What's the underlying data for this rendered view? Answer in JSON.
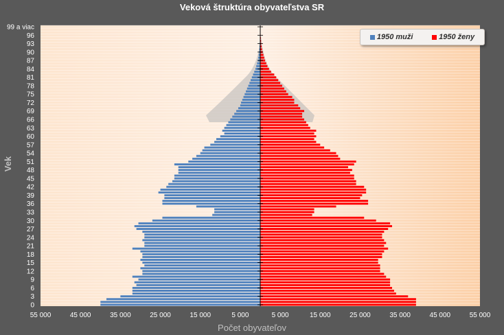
{
  "chart_data": {
    "type": "bar",
    "orientation": "horizontal-pyramid",
    "title": "Veková štruktúra obyvateľstva SR",
    "xlabel": "Počet obyvateľov",
    "ylabel": "Vek",
    "xlim": [
      -55000,
      55000
    ],
    "x_ticks": [
      -55000,
      -45000,
      -35000,
      -25000,
      -15000,
      -5000,
      5000,
      15000,
      25000,
      35000,
      45000,
      55000
    ],
    "x_tick_labels": [
      "55 000",
      "45 000",
      "35 000",
      "25 000",
      "15 000",
      "5 000",
      "5 000",
      "15 000",
      "25 000",
      "35 000",
      "45 000",
      "55 000"
    ],
    "y_tick_labels": [
      "0",
      "3",
      "6",
      "9",
      "12",
      "15",
      "18",
      "21",
      "24",
      "27",
      "30",
      "33",
      "36",
      "39",
      "42",
      "45",
      "48",
      "51",
      "54",
      "57",
      "60",
      "63",
      "66",
      "69",
      "72",
      "75",
      "78",
      "81",
      "84",
      "87",
      "90",
      "93",
      "96",
      "99 a viac"
    ],
    "categories": [
      "0",
      "1",
      "2",
      "3",
      "4",
      "5",
      "6",
      "7",
      "8",
      "9",
      "10",
      "11",
      "12",
      "13",
      "14",
      "15",
      "16",
      "17",
      "18",
      "19",
      "20",
      "21",
      "22",
      "23",
      "24",
      "25",
      "26",
      "27",
      "28",
      "29",
      "30",
      "31",
      "32",
      "33",
      "34",
      "35",
      "36",
      "37",
      "38",
      "39",
      "40",
      "41",
      "42",
      "43",
      "44",
      "45",
      "46",
      "47",
      "48",
      "49",
      "50",
      "51",
      "52",
      "53",
      "54",
      "55",
      "56",
      "57",
      "58",
      "59",
      "60",
      "61",
      "62",
      "63",
      "64",
      "65",
      "66",
      "67",
      "68",
      "69",
      "70",
      "71",
      "72",
      "73",
      "74",
      "75",
      "76",
      "77",
      "78",
      "79",
      "80",
      "81",
      "82",
      "83",
      "84",
      "85",
      "86",
      "87",
      "88",
      "89",
      "90",
      "91",
      "92",
      "93",
      "94",
      "95",
      "96",
      "97",
      "98",
      "99 a viac"
    ],
    "grid": true,
    "legend_position": "top-right",
    "series": [
      {
        "name": "1950 muži",
        "color": "#4f81bd",
        "values": [
          40000,
          40000,
          38500,
          35000,
          32000,
          32000,
          32000,
          31000,
          31500,
          30500,
          32000,
          29500,
          29500,
          30000,
          29000,
          29500,
          30000,
          29500,
          29500,
          30000,
          32000,
          29000,
          29000,
          29500,
          29000,
          29000,
          29500,
          31000,
          31500,
          30500,
          27000,
          24500,
          12000,
          11500,
          11500,
          16000,
          24500,
          24500,
          24000,
          24000,
          25500,
          25000,
          23500,
          23000,
          22000,
          21500,
          21500,
          20500,
          20500,
          20500,
          21500,
          18000,
          17000,
          16000,
          15000,
          14500,
          14000,
          12500,
          11500,
          11000,
          10000,
          9000,
          9500,
          9000,
          8500,
          8000,
          7500,
          7000,
          6500,
          6000,
          5500,
          5000,
          4800,
          4500,
          4200,
          3900,
          3600,
          3300,
          3000,
          2700,
          2400,
          2100,
          1800,
          1500,
          1200,
          1000,
          800,
          600,
          500,
          400,
          300,
          250,
          200,
          150,
          100,
          80,
          60,
          40,
          20,
          10
        ]
      },
      {
        "name": "1950 ženy",
        "color": "#ff0000",
        "values": [
          39000,
          39000,
          39000,
          37000,
          34000,
          33500,
          33000,
          32500,
          32500,
          32500,
          31500,
          31000,
          30000,
          30000,
          30000,
          29500,
          29500,
          30500,
          30500,
          31000,
          32000,
          31000,
          31500,
          31000,
          30500,
          30500,
          31000,
          32000,
          33000,
          32500,
          29000,
          26000,
          13000,
          13500,
          13500,
          19000,
          27000,
          27000,
          25000,
          25500,
          26500,
          26500,
          26000,
          24000,
          24000,
          23500,
          23500,
          22500,
          23000,
          22000,
          23500,
          24000,
          20000,
          19500,
          19000,
          17500,
          16000,
          15000,
          14000,
          13500,
          14000,
          13500,
          14000,
          12500,
          12000,
          11500,
          11000,
          10500,
          10500,
          11000,
          10000,
          9500,
          8500,
          8500,
          8000,
          7000,
          6500,
          6000,
          5500,
          5000,
          4500,
          4000,
          3500,
          2700,
          2200,
          1800,
          1500,
          1200,
          1000,
          800,
          600,
          450,
          350,
          250,
          200,
          150,
          100,
          60,
          30,
          15
        ]
      }
    ]
  }
}
